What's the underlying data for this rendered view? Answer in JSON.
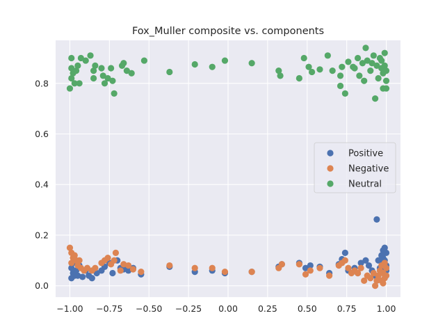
{
  "chart_data": {
    "type": "scatter",
    "title": "Fox_Muller composite vs. components",
    "xlabel": "",
    "ylabel": "",
    "xlim": [
      -1.09,
      1.09
    ],
    "ylim": [
      -0.045,
      0.97
    ],
    "x_ticks": [
      -1.0,
      -0.75,
      -0.5,
      -0.25,
      0.0,
      0.25,
      0.5,
      0.75,
      1.0
    ],
    "x_tick_labels": [
      "−1.00",
      "−0.75",
      "−0.50",
      "−0.25",
      "0.00",
      "0.25",
      "0.50",
      "0.75",
      "1.00"
    ],
    "y_ticks": [
      0.0,
      0.2,
      0.4,
      0.6,
      0.8
    ],
    "y_tick_labels": [
      "0.0",
      "0.2",
      "0.4",
      "0.6",
      "0.8"
    ],
    "grid": true,
    "legend_position": "center-right",
    "series": [
      {
        "name": "Positive",
        "color": "#4c72b0",
        "points": [
          [
            -0.99,
            0.03
          ],
          [
            -0.98,
            0.05
          ],
          [
            -0.99,
            0.07
          ],
          [
            -0.97,
            0.04
          ],
          [
            -0.98,
            0.09
          ],
          [
            -0.96,
            0.06
          ],
          [
            -0.95,
            0.04
          ],
          [
            -0.94,
            0.08
          ],
          [
            -0.92,
            0.035
          ],
          [
            -0.9,
            0.06
          ],
          [
            -0.88,
            0.04
          ],
          [
            -0.86,
            0.03
          ],
          [
            -0.83,
            0.05
          ],
          [
            -0.8,
            0.06
          ],
          [
            -0.78,
            0.075
          ],
          [
            -0.75,
            0.09
          ],
          [
            -0.73,
            0.05
          ],
          [
            -0.7,
            0.1
          ],
          [
            -0.68,
            0.07
          ],
          [
            -0.66,
            0.065
          ],
          [
            -0.63,
            0.06
          ],
          [
            -0.6,
            0.07
          ],
          [
            -0.55,
            0.045
          ],
          [
            -0.37,
            0.075
          ],
          [
            -0.21,
            0.055
          ],
          [
            -0.1,
            0.06
          ],
          [
            -0.02,
            0.05
          ],
          [
            0.15,
            0.055
          ],
          [
            0.32,
            0.075
          ],
          [
            0.34,
            0.085
          ],
          [
            0.45,
            0.09
          ],
          [
            0.49,
            0.07
          ],
          [
            0.52,
            0.08
          ],
          [
            0.58,
            0.075
          ],
          [
            0.64,
            0.05
          ],
          [
            0.7,
            0.085
          ],
          [
            0.72,
            0.105
          ],
          [
            0.74,
            0.13
          ],
          [
            0.76,
            0.06
          ],
          [
            0.8,
            0.07
          ],
          [
            0.82,
            0.05
          ],
          [
            0.84,
            0.09
          ],
          [
            0.87,
            0.1
          ],
          [
            0.89,
            0.08
          ],
          [
            0.91,
            0.06
          ],
          [
            0.93,
            0.04
          ],
          [
            0.94,
            0.262
          ],
          [
            0.95,
            0.1
          ],
          [
            0.96,
            0.07
          ],
          [
            0.97,
            0.12
          ],
          [
            0.98,
            0.09
          ],
          [
            0.99,
            0.15
          ],
          [
            1.0,
            0.13
          ],
          [
            0.99,
            0.05
          ],
          [
            0.98,
            0.11
          ],
          [
            1.0,
            0.08
          ],
          [
            0.97,
            0.06
          ],
          [
            0.99,
            0.1
          ],
          [
            1.0,
            0.06
          ],
          [
            0.98,
            0.14
          ]
        ]
      },
      {
        "name": "Negative",
        "color": "#dd8452",
        "points": [
          [
            -1.0,
            0.15
          ],
          [
            -0.99,
            0.13
          ],
          [
            -0.98,
            0.11
          ],
          [
            -0.99,
            0.09
          ],
          [
            -0.97,
            0.12
          ],
          [
            -0.96,
            0.1
          ],
          [
            -0.95,
            0.08
          ],
          [
            -0.94,
            0.1
          ],
          [
            -0.93,
            0.07
          ],
          [
            -0.91,
            0.06
          ],
          [
            -0.89,
            0.07
          ],
          [
            -0.86,
            0.06
          ],
          [
            -0.84,
            0.07
          ],
          [
            -0.8,
            0.09
          ],
          [
            -0.78,
            0.1
          ],
          [
            -0.76,
            0.11
          ],
          [
            -0.74,
            0.085
          ],
          [
            -0.72,
            0.1
          ],
          [
            -0.71,
            0.13
          ],
          [
            -0.68,
            0.06
          ],
          [
            -0.66,
            0.085
          ],
          [
            -0.63,
            0.08
          ],
          [
            -0.6,
            0.065
          ],
          [
            -0.55,
            0.055
          ],
          [
            -0.37,
            0.08
          ],
          [
            -0.21,
            0.07
          ],
          [
            -0.1,
            0.07
          ],
          [
            -0.02,
            0.055
          ],
          [
            0.15,
            0.055
          ],
          [
            0.32,
            0.07
          ],
          [
            0.34,
            0.085
          ],
          [
            0.45,
            0.085
          ],
          [
            0.49,
            0.045
          ],
          [
            0.52,
            0.06
          ],
          [
            0.58,
            0.07
          ],
          [
            0.64,
            0.04
          ],
          [
            0.7,
            0.08
          ],
          [
            0.72,
            0.09
          ],
          [
            0.74,
            0.1
          ],
          [
            0.76,
            0.07
          ],
          [
            0.78,
            0.05
          ],
          [
            0.8,
            0.06
          ],
          [
            0.82,
            0.05
          ],
          [
            0.84,
            0.07
          ],
          [
            0.86,
            0.02
          ],
          [
            0.88,
            0.04
          ],
          [
            0.9,
            0.03
          ],
          [
            0.92,
            0.05
          ],
          [
            0.93,
            0.0
          ],
          [
            0.94,
            0.02
          ],
          [
            0.95,
            0.04
          ],
          [
            0.96,
            0.06
          ],
          [
            0.97,
            0.02
          ],
          [
            0.98,
            0.05
          ],
          [
            0.99,
            0.03
          ],
          [
            1.0,
            0.07
          ],
          [
            0.99,
            0.09
          ],
          [
            0.98,
            0.01
          ],
          [
            1.0,
            0.04
          ],
          [
            0.97,
            0.08
          ]
        ]
      },
      {
        "name": "Neutral",
        "color": "#55a868",
        "points": [
          [
            -1.0,
            0.78
          ],
          [
            -0.99,
            0.86
          ],
          [
            -0.99,
            0.82
          ],
          [
            -0.98,
            0.84
          ],
          [
            -0.99,
            0.9
          ],
          [
            -0.97,
            0.8
          ],
          [
            -0.96,
            0.85
          ],
          [
            -0.95,
            0.87
          ],
          [
            -0.94,
            0.8
          ],
          [
            -0.93,
            0.9
          ],
          [
            -0.9,
            0.89
          ],
          [
            -0.87,
            0.91
          ],
          [
            -0.85,
            0.85
          ],
          [
            -0.84,
            0.87
          ],
          [
            -0.85,
            0.82
          ],
          [
            -0.8,
            0.86
          ],
          [
            -0.79,
            0.83
          ],
          [
            -0.78,
            0.8
          ],
          [
            -0.76,
            0.82
          ],
          [
            -0.74,
            0.86
          ],
          [
            -0.73,
            0.81
          ],
          [
            -0.72,
            0.76
          ],
          [
            -0.67,
            0.87
          ],
          [
            -0.66,
            0.88
          ],
          [
            -0.64,
            0.85
          ],
          [
            -0.61,
            0.84
          ],
          [
            -0.53,
            0.89
          ],
          [
            -0.37,
            0.845
          ],
          [
            -0.21,
            0.875
          ],
          [
            -0.1,
            0.865
          ],
          [
            -0.02,
            0.89
          ],
          [
            0.15,
            0.88
          ],
          [
            0.32,
            0.85
          ],
          [
            0.33,
            0.83
          ],
          [
            0.45,
            0.82
          ],
          [
            0.48,
            0.9
          ],
          [
            0.51,
            0.865
          ],
          [
            0.53,
            0.845
          ],
          [
            0.58,
            0.855
          ],
          [
            0.63,
            0.91
          ],
          [
            0.66,
            0.85
          ],
          [
            0.71,
            0.83
          ],
          [
            0.71,
            0.79
          ],
          [
            0.72,
            0.865
          ],
          [
            0.74,
            0.76
          ],
          [
            0.76,
            0.885
          ],
          [
            0.79,
            0.865
          ],
          [
            0.8,
            0.86
          ],
          [
            0.82,
            0.9
          ],
          [
            0.83,
            0.83
          ],
          [
            0.85,
            0.88
          ],
          [
            0.86,
            0.81
          ],
          [
            0.87,
            0.94
          ],
          [
            0.88,
            0.89
          ],
          [
            0.9,
            0.85
          ],
          [
            0.91,
            0.88
          ],
          [
            0.92,
            0.91
          ],
          [
            0.93,
            0.74
          ],
          [
            0.94,
            0.87
          ],
          [
            0.95,
            0.82
          ],
          [
            0.96,
            0.9
          ],
          [
            0.97,
            0.86
          ],
          [
            0.98,
            0.78
          ],
          [
            0.98,
            0.84
          ],
          [
            0.99,
            0.92
          ],
          [
            1.0,
            0.81
          ],
          [
            0.99,
            0.87
          ],
          [
            1.0,
            0.85
          ],
          [
            0.97,
            0.89
          ],
          [
            1.0,
            0.78
          ]
        ]
      }
    ]
  }
}
